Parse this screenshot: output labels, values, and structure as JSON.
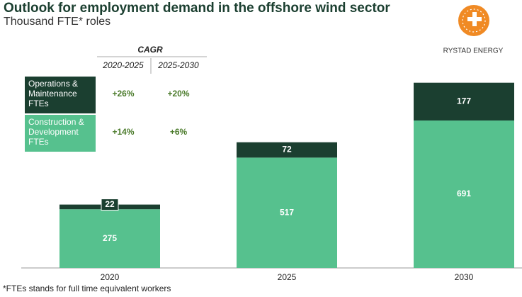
{
  "chart_data": {
    "type": "stacked_bar",
    "title": "Outlook for employment demand in the offshore wind sector",
    "subtitle": "Thousand FTE* roles",
    "logo_text": "RYSTAD ENERGY",
    "footnote": "*FTEs stands for full time equivalent workers",
    "categories": [
      "2020",
      "2025",
      "2030"
    ],
    "series": [
      {
        "name": "Construction & Development FTEs",
        "color": "#56c18e",
        "values": [
          275,
          517,
          691
        ]
      },
      {
        "name": "Operations & Maintenance FTEs",
        "color": "#1b3f30",
        "values": [
          22,
          72,
          177
        ]
      }
    ],
    "ylim": [
      0,
      960
    ],
    "cagr": {
      "title": "CAGR",
      "periods": [
        "2020-2025",
        "2025-2030"
      ],
      "values": [
        [
          "+14%",
          "+6%"
        ],
        [
          "+26%",
          "+20%"
        ]
      ]
    }
  }
}
